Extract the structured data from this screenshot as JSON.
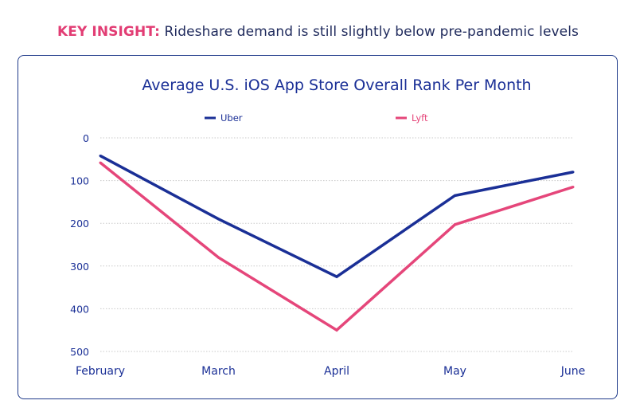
{
  "insight": {
    "label": "KEY INSIGHT:",
    "text": " Rideshare demand is still slightly below pre-pandemic levels"
  },
  "chart_data": {
    "type": "line",
    "title": "Average U.S. iOS App Store Overall Rank Per Month",
    "xlabel": "",
    "ylabel": "",
    "categories": [
      "February",
      "March",
      "April",
      "May",
      "June"
    ],
    "series": [
      {
        "name": "Uber",
        "color": "#1a2f96",
        "values": [
          42,
          190,
          325,
          135,
          80
        ]
      },
      {
        "name": "Lyft",
        "color": "#e5467a",
        "values": [
          58,
          280,
          450,
          203,
          115
        ]
      }
    ],
    "ylim": [
      0,
      500
    ],
    "y_ticks": [
      0,
      100,
      200,
      300,
      400,
      500
    ],
    "y_inverted": true,
    "grid": true,
    "legend_position": "top"
  }
}
